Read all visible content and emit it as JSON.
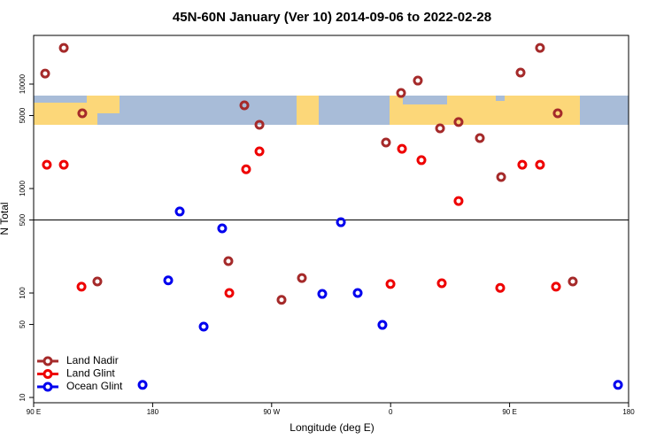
{
  "chart_data": {
    "type": "scatter",
    "title": "45N-60N January (Ver 10)   2014-09-06 to 2022-02-28",
    "x_label": "Longitude (deg E)",
    "y_label": "N Total",
    "log_y": true,
    "legend": "lower left",
    "hline": 500,
    "xlim": [
      90,
      540
    ],
    "ylim": [
      8.9,
      29250
    ],
    "xticks": [
      {
        "value": 90,
        "label": "90 E"
      },
      180,
      {
        "value": 270,
        "label": "90 W"
      },
      {
        "value": 360,
        "label": "0"
      },
      {
        "value": 450,
        "label": "90 E"
      },
      {
        "value": 540,
        "label": "180"
      }
    ],
    "yticks": [
      10,
      50,
      100,
      500,
      1000,
      5000,
      10000
    ],
    "series": [
      {
        "name": "Land Nadir",
        "color": "#a52a2a",
        "x": [
          98.7,
          112.8,
          126.8,
          138.2,
          237.3,
          249.4,
          260.8,
          277.5,
          292.9,
          356.5,
          367.9,
          380.6,
          397.4,
          411.4,
          427.5,
          443.6,
          458.3,
          473.0,
          486.4,
          497.8
        ],
        "values": [
          12600,
          22200,
          5250,
          129,
          202,
          6260,
          4080,
          86,
          139,
          2760,
          8220,
          10800,
          3770,
          4330,
          3040,
          1290,
          12900,
          22200,
          5250,
          129
        ]
      },
      {
        "name": "Land Glint",
        "color": "#ee0000",
        "x": [
          100.0,
          112.8,
          126.2,
          250.7,
          260.8,
          238.0,
          359.9,
          368.6,
          383.3,
          398.7,
          411.4,
          442.9,
          459.6,
          473.0,
          485.1
        ],
        "values": [
          1690,
          1690,
          115,
          1530,
          2270,
          100,
          122,
          2400,
          1870,
          124,
          760,
          112,
          1690,
          1690,
          115
        ]
      },
      {
        "name": "Ocean Glint",
        "color": "#0000ee",
        "x": [
          172.4,
          191.8,
          200.5,
          218.6,
          232.6,
          308.3,
          322.4,
          335.1,
          353.8,
          532.0
        ],
        "values": [
          13.2,
          132,
          603,
          47.7,
          416,
          98,
          476,
          100,
          49.5,
          13.2
        ]
      }
    ]
  }
}
